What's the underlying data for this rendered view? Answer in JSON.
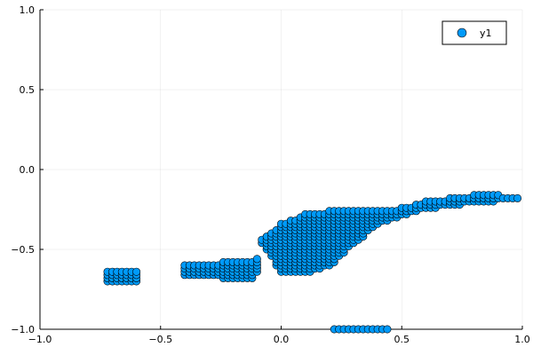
{
  "chart_data": {
    "type": "scatter",
    "title": "",
    "xlabel": "",
    "ylabel": "",
    "xlim": [
      -1.0,
      1.0
    ],
    "ylim": [
      -1.0,
      1.0
    ],
    "x_ticks": [
      -1.0,
      -0.5,
      0.0,
      0.5,
      1.0
    ],
    "x_tick_labels": [
      "−1.0",
      "−0.5",
      "0.0",
      "0.5",
      "1.0"
    ],
    "y_ticks": [
      -1.0,
      -0.5,
      0.0,
      0.5,
      1.0
    ],
    "y_tick_labels": [
      "−1.0",
      "−0.5",
      "0.0",
      "0.5",
      "1.0"
    ],
    "grid": true,
    "legend_position": "top-right",
    "series": [
      {
        "name": "y1",
        "color": "#009AFA",
        "marker": "circle",
        "regions": [
          {
            "x": [
              -0.72,
              -0.6
            ],
            "y_bottom": [
              -0.7,
              -0.7
            ],
            "y_top": [
              -0.64,
              -0.64
            ],
            "step": 0.02
          },
          {
            "x": [
              -0.4,
              -0.1
            ],
            "y_bottom": [
              -0.66,
              -0.68,
              -0.66,
              -0.64
            ],
            "y_top": [
              -0.6,
              -0.56,
              -0.56,
              -0.56
            ],
            "step": 0.02
          },
          {
            "x": [
              -0.08,
              0.0,
              0.1,
              0.2,
              0.3,
              0.4,
              0.5,
              0.6,
              0.7,
              0.8,
              0.9,
              0.98
            ],
            "y_bottom": [
              -0.46,
              -0.64,
              -0.64,
              -0.6,
              -0.46,
              -0.34,
              -0.28,
              -0.24,
              -0.22,
              -0.2,
              -0.19,
              -0.18
            ],
            "y_top": [
              -0.44,
              -0.34,
              -0.28,
              -0.26,
              -0.26,
              -0.26,
              -0.24,
              -0.2,
              -0.18,
              -0.16,
              -0.16,
              -0.18
            ],
            "step": 0.02
          },
          {
            "x": [
              0.22,
              0.44
            ],
            "y_bottom": [
              -1.0,
              -1.0
            ],
            "y_top": [
              -1.0,
              -1.0
            ],
            "step": 0.02
          }
        ]
      }
    ]
  }
}
